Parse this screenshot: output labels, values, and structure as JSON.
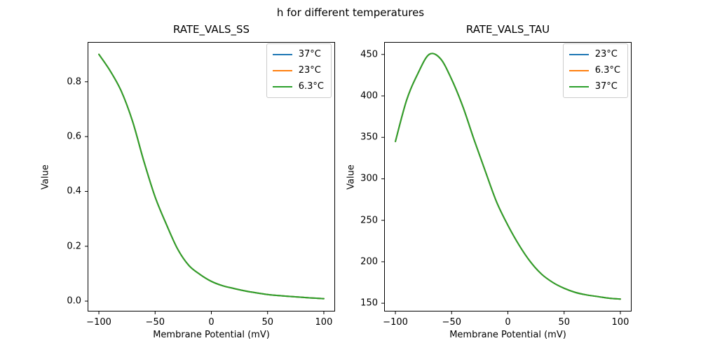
{
  "figure": {
    "suptitle": "h for different temperatures",
    "background_color": "#ffffff",
    "text_color": "#000000",
    "spine_color": "#000000"
  },
  "chart_data": [
    {
      "type": "line",
      "title": "RATE_VALS_SS",
      "xlabel": "Membrane Potential (mV)",
      "ylabel": "Value",
      "xlim": [
        -110,
        110
      ],
      "ylim": [
        -0.038,
        0.945
      ],
      "grid": false,
      "legend_position": "upper right",
      "note": "All three temperature curves coincide exactly; only the last-drawn green curve is visible.",
      "xticks": {
        "values": [
          -100,
          -50,
          0,
          50,
          100
        ],
        "labels": [
          "−100",
          "−50",
          "0",
          "50",
          "100"
        ]
      },
      "yticks": {
        "values": [
          0.0,
          0.2,
          0.4,
          0.6,
          0.8
        ],
        "labels": [
          "0.0",
          "0.2",
          "0.4",
          "0.6",
          "0.8"
        ]
      },
      "legend": [
        {
          "label": "37°C",
          "color": "#1f77b4"
        },
        {
          "label": "23°C",
          "color": "#ff7f0e"
        },
        {
          "label": "6.3°C",
          "color": "#2ca02c"
        }
      ],
      "x": [
        -100,
        -90,
        -80,
        -70,
        -60,
        -50,
        -40,
        -30,
        -20,
        -10,
        0,
        10,
        20,
        30,
        40,
        50,
        60,
        70,
        80,
        90,
        100
      ],
      "series": [
        {
          "name": "37°C",
          "color": "#1f77b4",
          "values": [
            0.9,
            0.84,
            0.765,
            0.655,
            0.51,
            0.38,
            0.28,
            0.19,
            0.13,
            0.097,
            0.072,
            0.056,
            0.046,
            0.037,
            0.03,
            0.024,
            0.02,
            0.017,
            0.014,
            0.011,
            0.009
          ]
        },
        {
          "name": "23°C",
          "color": "#ff7f0e",
          "values": [
            0.9,
            0.84,
            0.765,
            0.655,
            0.51,
            0.38,
            0.28,
            0.19,
            0.13,
            0.097,
            0.072,
            0.056,
            0.046,
            0.037,
            0.03,
            0.024,
            0.02,
            0.017,
            0.014,
            0.011,
            0.009
          ]
        },
        {
          "name": "6.3°C",
          "color": "#2ca02c",
          "values": [
            0.9,
            0.84,
            0.765,
            0.655,
            0.51,
            0.38,
            0.28,
            0.19,
            0.13,
            0.097,
            0.072,
            0.056,
            0.046,
            0.037,
            0.03,
            0.024,
            0.02,
            0.017,
            0.014,
            0.011,
            0.009
          ]
        }
      ]
    },
    {
      "type": "line",
      "title": "RATE_VALS_TAU",
      "xlabel": "Membrane Potential (mV)",
      "ylabel": "Value",
      "xlim": [
        -110,
        110
      ],
      "ylim": [
        140,
        465
      ],
      "grid": false,
      "legend_position": "upper right",
      "note": "All three temperature curves coincide exactly; only the last-drawn green curve is visible. Peak ≈ 450 near V = −68 mV.",
      "xticks": {
        "values": [
          -100,
          -50,
          0,
          50,
          100
        ],
        "labels": [
          "−100",
          "−50",
          "0",
          "50",
          "100"
        ]
      },
      "yticks": {
        "values": [
          150,
          200,
          250,
          300,
          350,
          400,
          450
        ],
        "labels": [
          "150",
          "200",
          "250",
          "300",
          "350",
          "400",
          "450"
        ]
      },
      "legend": [
        {
          "label": "23°C",
          "color": "#1f77b4"
        },
        {
          "label": "6.3°C",
          "color": "#ff7f0e"
        },
        {
          "label": "37°C",
          "color": "#2ca02c"
        }
      ],
      "x": [
        -100,
        -90,
        -80,
        -70,
        -60,
        -50,
        -40,
        -30,
        -20,
        -10,
        0,
        10,
        20,
        30,
        40,
        50,
        60,
        70,
        80,
        90,
        100
      ],
      "series": [
        {
          "name": "23°C",
          "color": "#1f77b4",
          "values": [
            345,
            395,
            427,
            450,
            445,
            420,
            387,
            347,
            309,
            272,
            244,
            220,
            200,
            185,
            175,
            168,
            163,
            160,
            158,
            156,
            155
          ]
        },
        {
          "name": "6.3°C",
          "color": "#ff7f0e",
          "values": [
            345,
            395,
            427,
            450,
            445,
            420,
            387,
            347,
            309,
            272,
            244,
            220,
            200,
            185,
            175,
            168,
            163,
            160,
            158,
            156,
            155
          ]
        },
        {
          "name": "37°C",
          "color": "#2ca02c",
          "values": [
            345,
            395,
            427,
            450,
            445,
            420,
            387,
            347,
            309,
            272,
            244,
            220,
            200,
            185,
            175,
            168,
            163,
            160,
            158,
            156,
            155
          ]
        }
      ]
    }
  ]
}
